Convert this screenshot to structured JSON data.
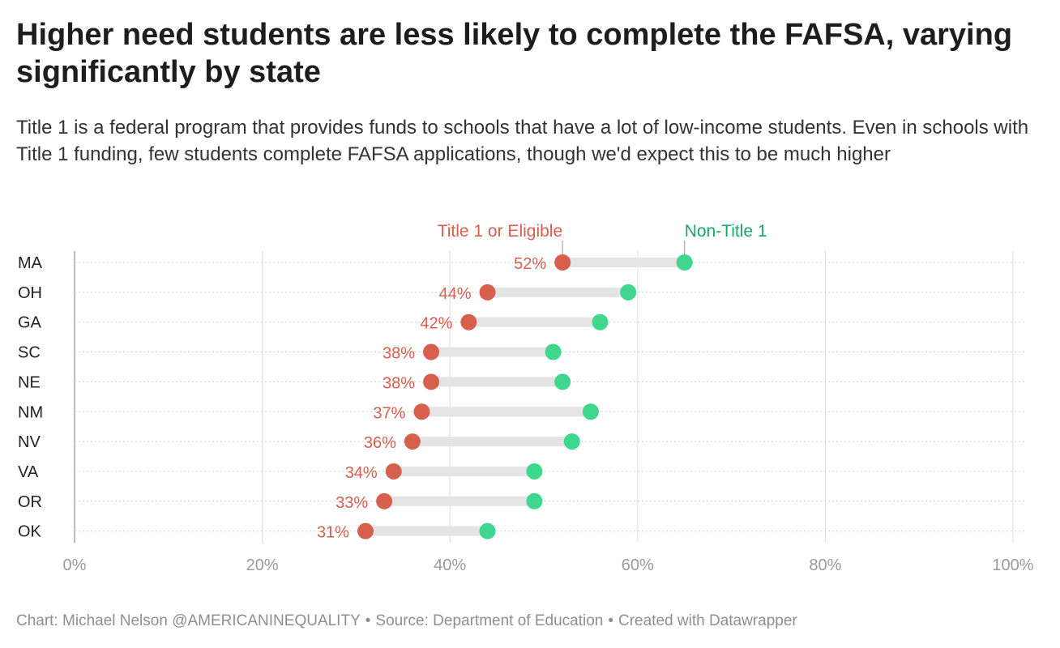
{
  "header": {
    "title": "Higher need students are less likely to complete the FAFSA, varying significantly by state",
    "subtitle": "Title 1 is a federal program that provides funds to schools that have a lot of low-income students. Even in schools with Title 1 funding, few students complete FAFSA applications, though we'd expect this to be much higher"
  },
  "footer": {
    "credit": "Chart: Michael Nelson @AMERICANINEQUALITY",
    "source": "Source: Department of Education",
    "tool": "Created with Datawrapper",
    "separator": "•"
  },
  "colors": {
    "title1": "#d6604d",
    "nontitle1": "#3fd68e",
    "nontitle1_label": "#18a866",
    "connector": "#e4e4e4",
    "grid": "#dddddd",
    "axis_text": "#9a9a9a"
  },
  "chart_data": {
    "type": "dot-range",
    "title": "Higher need students are less likely to complete the FAFSA, varying significantly by state",
    "categories": [
      "MA",
      "OH",
      "GA",
      "SC",
      "NE",
      "NM",
      "NV",
      "VA",
      "OR",
      "OK"
    ],
    "series": [
      {
        "name": "Title 1 or Eligible",
        "values": [
          52,
          44,
          42,
          38,
          38,
          37,
          36,
          34,
          33,
          31
        ],
        "color": "#d6604d"
      },
      {
        "name": "Non-Title 1",
        "values": [
          65,
          59,
          56,
          51,
          52,
          55,
          53,
          49,
          49,
          44
        ],
        "color": "#3fd68e"
      }
    ],
    "value_labels": [
      "52%",
      "44%",
      "42%",
      "38%",
      "38%",
      "37%",
      "36%",
      "34%",
      "33%",
      "31%"
    ],
    "xlim": [
      0,
      100
    ],
    "x_ticks": [
      0,
      20,
      40,
      60,
      80,
      100
    ],
    "x_tick_labels": [
      "0%",
      "20%",
      "40%",
      "60%",
      "80%",
      "100%"
    ],
    "xlabel": "",
    "ylabel": "",
    "grid": true,
    "legend": "inline-top"
  }
}
